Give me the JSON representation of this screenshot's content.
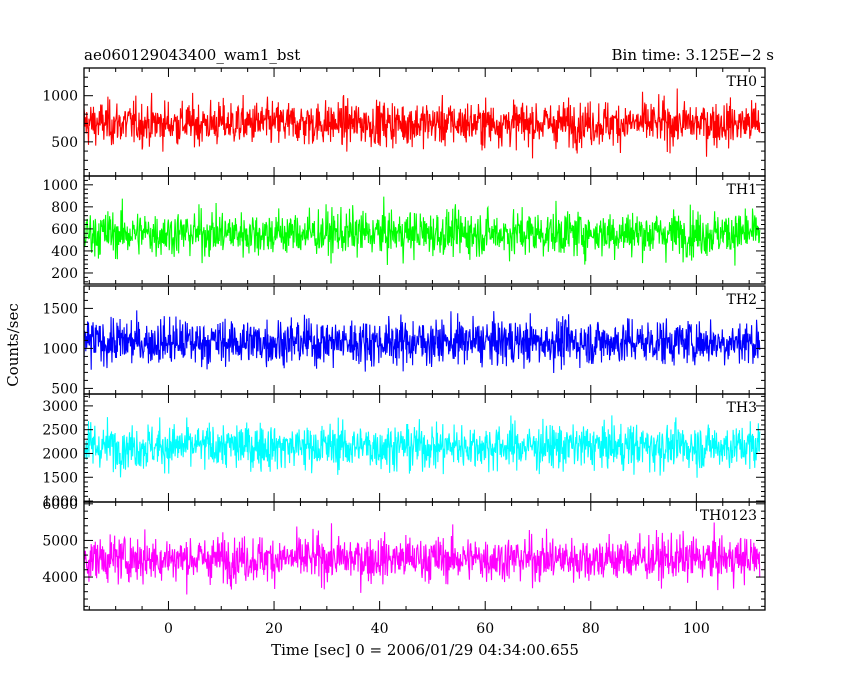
{
  "header": {
    "title": "ae060129043400_wam1_bst",
    "bin_time": "Bin time: 3.125E−2 s"
  },
  "chart_data": {
    "type": "line",
    "title": "ae060129043400_wam1_bst",
    "xlabel": "Time [sec] 0 = 2006/01/29 04:34:00.655",
    "ylabel": "Counts/sec",
    "xlim": [
      -16,
      113
    ],
    "x_ticks": [
      0,
      20,
      40,
      60,
      80,
      100
    ],
    "x_data_range": [
      -16,
      112
    ],
    "grid": false,
    "legend": "none",
    "panels": [
      {
        "name": "TH0",
        "color": "#ff0000",
        "ylim": [
          130,
          1300
        ],
        "y_ticks": [
          500,
          1000
        ],
        "mean": 700,
        "min": 180,
        "max": 1280
      },
      {
        "name": "TH1",
        "color": "#00ff00",
        "ylim": [
          100,
          1080
        ],
        "y_ticks": [
          200,
          400,
          600,
          800,
          1000
        ],
        "mean": 560,
        "min": 130,
        "max": 1080
      },
      {
        "name": "TH2",
        "color": "#0000ff",
        "ylim": [
          430,
          1780
        ],
        "y_ticks": [
          500,
          1000,
          1500
        ],
        "mean": 1080,
        "min": 460,
        "max": 1780
      },
      {
        "name": "TH3",
        "color": "#00ffff",
        "ylim": [
          980,
          3250
        ],
        "y_ticks": [
          1000,
          1500,
          2000,
          2500,
          3000
        ],
        "mean": 2150,
        "min": 1050,
        "max": 3250
      },
      {
        "name": "TH0123",
        "color": "#ff00ff",
        "ylim": [
          3100,
          6050
        ],
        "y_ticks": [
          4000,
          5000,
          6000
        ],
        "mean": 4500,
        "min": 3120,
        "max": 5950
      }
    ]
  }
}
